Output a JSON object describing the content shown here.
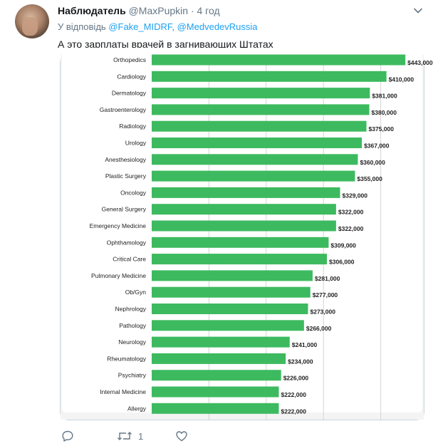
{
  "tweet": {
    "name": "Наблюдатель",
    "handle": "@MaxPupkin",
    "dot": "·",
    "time": "4 год",
    "reply_prefix": "У відповідь",
    "reply_user1": "@Fake_MIDRF",
    "reply_sep": ",",
    "reply_user2": "@MedvedevRussia",
    "text": "А это зарплаты врачей в загнивающих Штатах",
    "retweet_count": "1"
  },
  "icons": {
    "caret": "chevron-down-icon",
    "reply": "reply-icon",
    "retweet": "retweet-icon",
    "like": "heart-icon",
    "avatar": "avatar"
  },
  "colors": {
    "bar": "#3dba5f",
    "link": "#1da1f2",
    "muted": "#657786"
  },
  "chart_data": {
    "type": "bar",
    "orientation": "horizontal",
    "categories": [
      "Orthopedics",
      "Cardiology",
      "Dermatology",
      "Gastroenterology",
      "Radiology",
      "Urology",
      "Anesthesiology",
      "Plastic Surgery",
      "Oncology",
      "General Surgery",
      "Emergency Medicine",
      "Ophthamology",
      "Critical Care",
      "Pulmonary Medicine",
      "Ob/Gyn",
      "Nephrology",
      "Pathology",
      "Neurology",
      "Rheumatology",
      "Psychiatry",
      "Internal Medicine",
      "Allergy"
    ],
    "values": [
      443000,
      410000,
      381000,
      380000,
      375000,
      367000,
      360000,
      355000,
      329000,
      322000,
      322000,
      309000,
      306000,
      281000,
      277000,
      273000,
      266000,
      241000,
      234000,
      226000,
      222000,
      222000
    ],
    "value_labels": [
      "$443,000",
      "$410,000",
      "$381,000",
      "$380,000",
      "$375,000",
      "$367,000",
      "$360,000",
      "$355,000",
      "$329,000",
      "$322,000",
      "$322,000",
      "$309,000",
      "$306,000",
      "$281,000",
      "$277,000",
      "$273,000",
      "$266,000",
      "$241,000",
      "$234,000",
      "$226,000",
      "$222,000",
      "$222,000"
    ],
    "xlim": [
      0,
      500000
    ],
    "gridlines": [
      100000,
      200000,
      300000,
      400000
    ],
    "grid": true,
    "title": "",
    "xlabel": "",
    "ylabel": ""
  }
}
